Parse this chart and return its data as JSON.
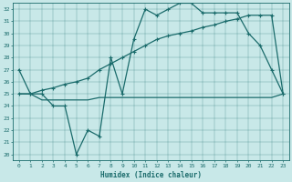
{
  "xlabel": "Humidex (Indice chaleur)",
  "bg_color": "#c8e8e8",
  "line_color": "#1a6b6b",
  "xlim": [
    -0.5,
    23.5
  ],
  "ylim": [
    19.5,
    32.5
  ],
  "yticks": [
    20,
    21,
    22,
    23,
    24,
    25,
    26,
    27,
    28,
    29,
    30,
    31,
    32
  ],
  "xticks": [
    0,
    1,
    2,
    3,
    4,
    5,
    6,
    7,
    8,
    9,
    10,
    11,
    12,
    13,
    14,
    15,
    16,
    17,
    18,
    19,
    20,
    21,
    22,
    23
  ],
  "line1_x": [
    0,
    1,
    2,
    3,
    4,
    5,
    6,
    7,
    8,
    9,
    10,
    11,
    12,
    13,
    14,
    15,
    16,
    17,
    18,
    19,
    20,
    21,
    22,
    23
  ],
  "line1_y": [
    27,
    25,
    25,
    24,
    24,
    20,
    22,
    21.5,
    28,
    25,
    29.5,
    32,
    31.5,
    32,
    32.5,
    32.5,
    31.7,
    31.7,
    31.7,
    31.7,
    30,
    29,
    27,
    25
  ],
  "line2_x": [
    0,
    1,
    2,
    3,
    4,
    5,
    6,
    7,
    8,
    9,
    10,
    11,
    12,
    13,
    14,
    15,
    16,
    17,
    18,
    19,
    20,
    21,
    22,
    23
  ],
  "line2_y": [
    25,
    25,
    25.3,
    25.5,
    25.8,
    26,
    26.3,
    27,
    27.5,
    28,
    28.5,
    29,
    29.5,
    29.8,
    30,
    30.2,
    30.5,
    30.7,
    31,
    31.2,
    31.5,
    31.5,
    31.5,
    25
  ],
  "line3_x": [
    0,
    1,
    2,
    3,
    4,
    5,
    6,
    7,
    8,
    9,
    10,
    11,
    12,
    13,
    14,
    15,
    16,
    17,
    18,
    19,
    20,
    21,
    22,
    23
  ],
  "line3_y": [
    25,
    25,
    24.5,
    24.5,
    24.5,
    24.5,
    24.5,
    24.7,
    24.7,
    24.7,
    24.7,
    24.7,
    24.7,
    24.7,
    24.7,
    24.7,
    24.7,
    24.7,
    24.7,
    24.7,
    24.7,
    24.7,
    24.7,
    25
  ],
  "linewidth": 0.9,
  "markersize": 3
}
